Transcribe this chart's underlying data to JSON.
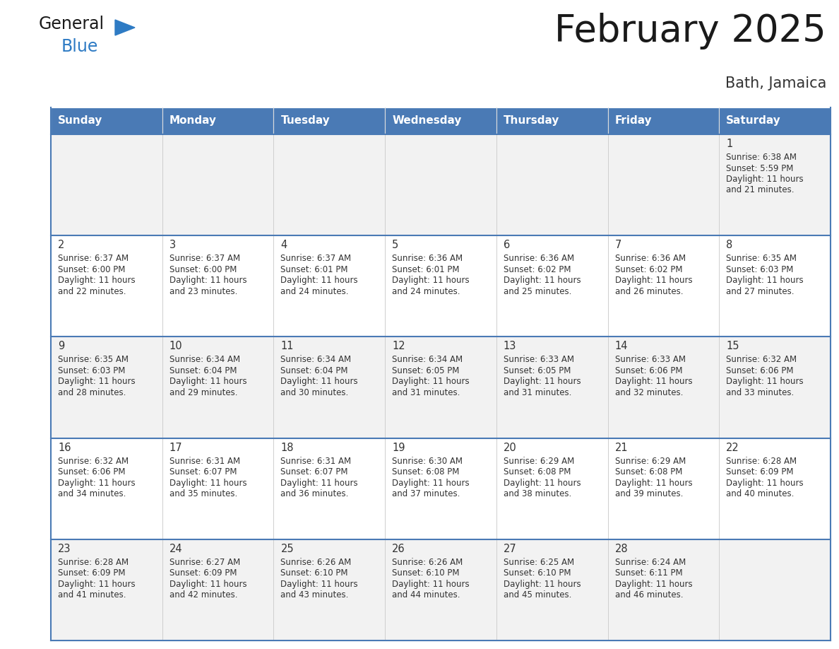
{
  "title": "February 2025",
  "subtitle": "Bath, Jamaica",
  "header_bg": "#4a7ab5",
  "header_text_color": "#ffffff",
  "day_names": [
    "Sunday",
    "Monday",
    "Tuesday",
    "Wednesday",
    "Thursday",
    "Friday",
    "Saturday"
  ],
  "cell_bg_light": "#f2f2f2",
  "cell_bg_white": "#ffffff",
  "separator_color": "#4a7ab5",
  "day_num_color": "#333333",
  "info_color": "#333333",
  "calendar": [
    [
      null,
      null,
      null,
      null,
      null,
      null,
      {
        "day": "1",
        "sunrise": "6:38 AM",
        "sunset": "5:59 PM",
        "daylight": "11 hours",
        "daylight2": "and 21 minutes."
      }
    ],
    [
      {
        "day": "2",
        "sunrise": "6:37 AM",
        "sunset": "6:00 PM",
        "daylight": "11 hours",
        "daylight2": "and 22 minutes."
      },
      {
        "day": "3",
        "sunrise": "6:37 AM",
        "sunset": "6:00 PM",
        "daylight": "11 hours",
        "daylight2": "and 23 minutes."
      },
      {
        "day": "4",
        "sunrise": "6:37 AM",
        "sunset": "6:01 PM",
        "daylight": "11 hours",
        "daylight2": "and 24 minutes."
      },
      {
        "day": "5",
        "sunrise": "6:36 AM",
        "sunset": "6:01 PM",
        "daylight": "11 hours",
        "daylight2": "and 24 minutes."
      },
      {
        "day": "6",
        "sunrise": "6:36 AM",
        "sunset": "6:02 PM",
        "daylight": "11 hours",
        "daylight2": "and 25 minutes."
      },
      {
        "day": "7",
        "sunrise": "6:36 AM",
        "sunset": "6:02 PM",
        "daylight": "11 hours",
        "daylight2": "and 26 minutes."
      },
      {
        "day": "8",
        "sunrise": "6:35 AM",
        "sunset": "6:03 PM",
        "daylight": "11 hours",
        "daylight2": "and 27 minutes."
      }
    ],
    [
      {
        "day": "9",
        "sunrise": "6:35 AM",
        "sunset": "6:03 PM",
        "daylight": "11 hours",
        "daylight2": "and 28 minutes."
      },
      {
        "day": "10",
        "sunrise": "6:34 AM",
        "sunset": "6:04 PM",
        "daylight": "11 hours",
        "daylight2": "and 29 minutes."
      },
      {
        "day": "11",
        "sunrise": "6:34 AM",
        "sunset": "6:04 PM",
        "daylight": "11 hours",
        "daylight2": "and 30 minutes."
      },
      {
        "day": "12",
        "sunrise": "6:34 AM",
        "sunset": "6:05 PM",
        "daylight": "11 hours",
        "daylight2": "and 31 minutes."
      },
      {
        "day": "13",
        "sunrise": "6:33 AM",
        "sunset": "6:05 PM",
        "daylight": "11 hours",
        "daylight2": "and 31 minutes."
      },
      {
        "day": "14",
        "sunrise": "6:33 AM",
        "sunset": "6:06 PM",
        "daylight": "11 hours",
        "daylight2": "and 32 minutes."
      },
      {
        "day": "15",
        "sunrise": "6:32 AM",
        "sunset": "6:06 PM",
        "daylight": "11 hours",
        "daylight2": "and 33 minutes."
      }
    ],
    [
      {
        "day": "16",
        "sunrise": "6:32 AM",
        "sunset": "6:06 PM",
        "daylight": "11 hours",
        "daylight2": "and 34 minutes."
      },
      {
        "day": "17",
        "sunrise": "6:31 AM",
        "sunset": "6:07 PM",
        "daylight": "11 hours",
        "daylight2": "and 35 minutes."
      },
      {
        "day": "18",
        "sunrise": "6:31 AM",
        "sunset": "6:07 PM",
        "daylight": "11 hours",
        "daylight2": "and 36 minutes."
      },
      {
        "day": "19",
        "sunrise": "6:30 AM",
        "sunset": "6:08 PM",
        "daylight": "11 hours",
        "daylight2": "and 37 minutes."
      },
      {
        "day": "20",
        "sunrise": "6:29 AM",
        "sunset": "6:08 PM",
        "daylight": "11 hours",
        "daylight2": "and 38 minutes."
      },
      {
        "day": "21",
        "sunrise": "6:29 AM",
        "sunset": "6:08 PM",
        "daylight": "11 hours",
        "daylight2": "and 39 minutes."
      },
      {
        "day": "22",
        "sunrise": "6:28 AM",
        "sunset": "6:09 PM",
        "daylight": "11 hours",
        "daylight2": "and 40 minutes."
      }
    ],
    [
      {
        "day": "23",
        "sunrise": "6:28 AM",
        "sunset": "6:09 PM",
        "daylight": "11 hours",
        "daylight2": "and 41 minutes."
      },
      {
        "day": "24",
        "sunrise": "6:27 AM",
        "sunset": "6:09 PM",
        "daylight": "11 hours",
        "daylight2": "and 42 minutes."
      },
      {
        "day": "25",
        "sunrise": "6:26 AM",
        "sunset": "6:10 PM",
        "daylight": "11 hours",
        "daylight2": "and 43 minutes."
      },
      {
        "day": "26",
        "sunrise": "6:26 AM",
        "sunset": "6:10 PM",
        "daylight": "11 hours",
        "daylight2": "and 44 minutes."
      },
      {
        "day": "27",
        "sunrise": "6:25 AM",
        "sunset": "6:10 PM",
        "daylight": "11 hours",
        "daylight2": "and 45 minutes."
      },
      {
        "day": "28",
        "sunrise": "6:24 AM",
        "sunset": "6:11 PM",
        "daylight": "11 hours",
        "daylight2": "and 46 minutes."
      },
      null
    ]
  ]
}
